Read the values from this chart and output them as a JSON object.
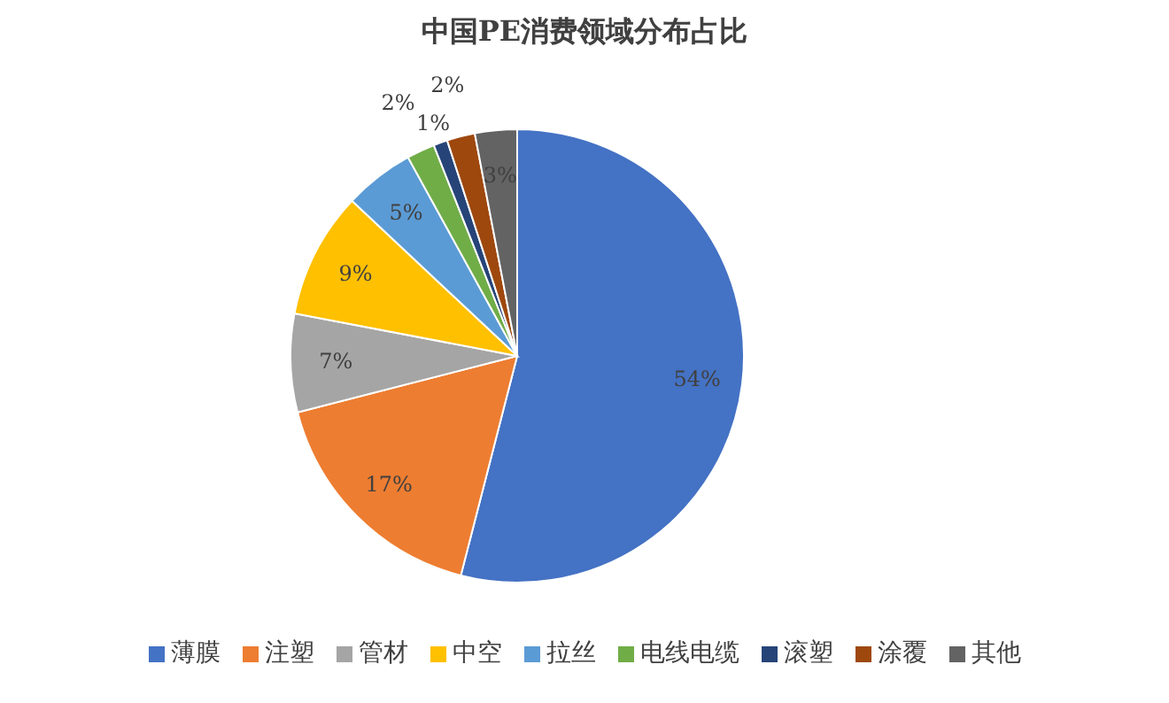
{
  "chart_data": {
    "type": "pie",
    "title": "中国PE消费领域分布占比",
    "categories": [
      "薄膜",
      "注塑",
      "管材",
      "中空",
      "拉丝",
      "电线电缆",
      "滚塑",
      "涂覆",
      "其他"
    ],
    "values": [
      54,
      17,
      7,
      9,
      5,
      2,
      1,
      2,
      3
    ],
    "value_labels": [
      "54%",
      "17%",
      "7%",
      "9%",
      "5%",
      "2%",
      "1%",
      "2%",
      "3%"
    ],
    "colors": [
      "#4472c4",
      "#ed7d31",
      "#a5a5a5",
      "#ffc000",
      "#5b9bd5",
      "#70ad47",
      "#264478",
      "#9e480e",
      "#636363"
    ],
    "legend": "bottom"
  }
}
